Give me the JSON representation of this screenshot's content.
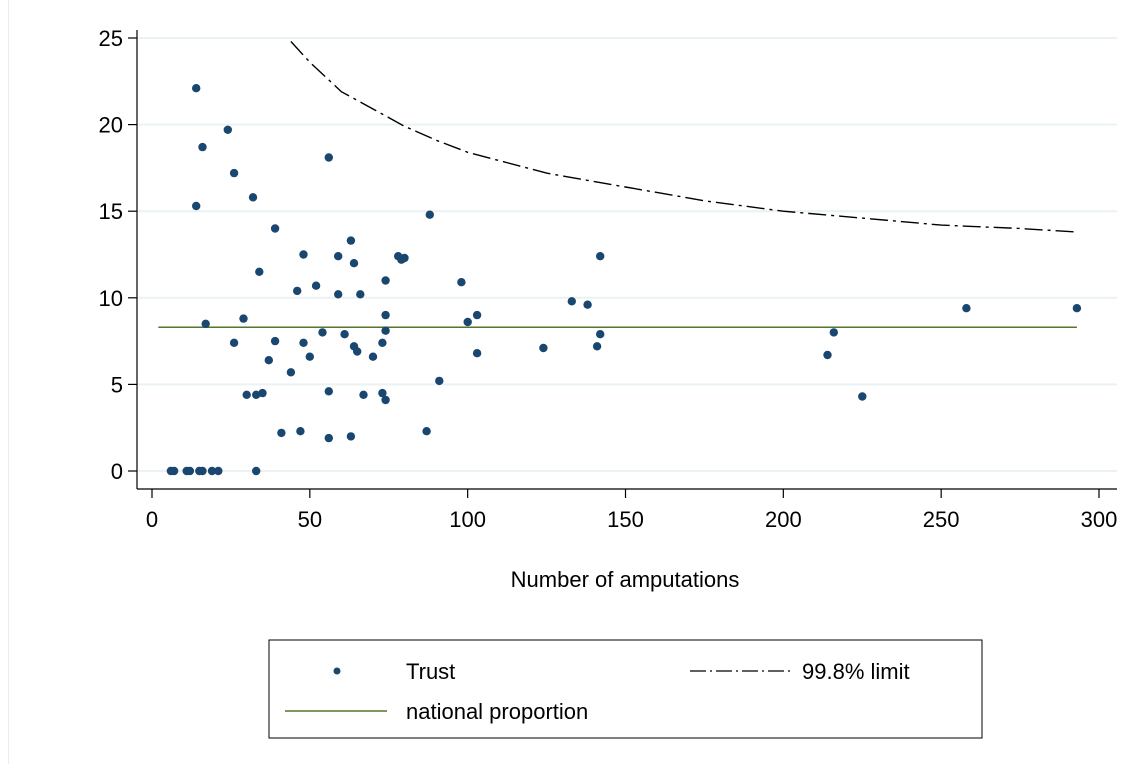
{
  "chart_data": {
    "type": "scatter",
    "xlabel": "Number of amputations",
    "ylabel": "",
    "xlim": [
      0,
      300
    ],
    "ylim": [
      0,
      25
    ],
    "x_ticks": [
      0,
      50,
      100,
      150,
      200,
      250,
      300
    ],
    "y_ticks": [
      0,
      5,
      10,
      15,
      20,
      25
    ],
    "grid": "horizontal",
    "legend_position": "bottom",
    "colors": {
      "trust": "#1a476f",
      "national": "#55752f",
      "limit": "#000000",
      "grid": "#eaf2f3"
    },
    "legend": {
      "trust": "Trust",
      "limit": "99.8% limit",
      "national": "national proportion"
    },
    "national_proportion": 8.3,
    "national_x_range": [
      2,
      293
    ],
    "limit_curve": [
      {
        "x": 44,
        "y": 24.8
      },
      {
        "x": 50,
        "y": 23.6
      },
      {
        "x": 60,
        "y": 21.9
      },
      {
        "x": 70,
        "y": 20.9
      },
      {
        "x": 80,
        "y": 19.9
      },
      {
        "x": 90,
        "y": 19.1
      },
      {
        "x": 100,
        "y": 18.4
      },
      {
        "x": 125,
        "y": 17.2
      },
      {
        "x": 150,
        "y": 16.4
      },
      {
        "x": 175,
        "y": 15.6
      },
      {
        "x": 200,
        "y": 15.0
      },
      {
        "x": 225,
        "y": 14.6
      },
      {
        "x": 250,
        "y": 14.2
      },
      {
        "x": 275,
        "y": 14.0
      },
      {
        "x": 293,
        "y": 13.8
      }
    ],
    "series": [
      {
        "name": "Trust",
        "points": [
          {
            "x": 6,
            "y": 0
          },
          {
            "x": 7,
            "y": 0
          },
          {
            "x": 11,
            "y": 0
          },
          {
            "x": 12,
            "y": 0
          },
          {
            "x": 15,
            "y": 0
          },
          {
            "x": 16,
            "y": 0
          },
          {
            "x": 19,
            "y": 0
          },
          {
            "x": 21,
            "y": 0
          },
          {
            "x": 33,
            "y": 0
          },
          {
            "x": 14,
            "y": 22.1
          },
          {
            "x": 14,
            "y": 15.3
          },
          {
            "x": 16,
            "y": 18.7
          },
          {
            "x": 17,
            "y": 8.5
          },
          {
            "x": 24,
            "y": 19.7
          },
          {
            "x": 26,
            "y": 17.2
          },
          {
            "x": 26,
            "y": 7.4
          },
          {
            "x": 29,
            "y": 8.8
          },
          {
            "x": 30,
            "y": 4.4
          },
          {
            "x": 32,
            "y": 15.8
          },
          {
            "x": 33,
            "y": 4.4
          },
          {
            "x": 34,
            "y": 11.5
          },
          {
            "x": 35,
            "y": 4.5
          },
          {
            "x": 37,
            "y": 6.4
          },
          {
            "x": 39,
            "y": 14.0
          },
          {
            "x": 39,
            "y": 7.5
          },
          {
            "x": 41,
            "y": 2.2
          },
          {
            "x": 44,
            "y": 5.7
          },
          {
            "x": 46,
            "y": 10.4
          },
          {
            "x": 47,
            "y": 2.3
          },
          {
            "x": 48,
            "y": 12.5
          },
          {
            "x": 48,
            "y": 7.4
          },
          {
            "x": 50,
            "y": 6.6
          },
          {
            "x": 52,
            "y": 10.7
          },
          {
            "x": 54,
            "y": 8.0
          },
          {
            "x": 56,
            "y": 18.1
          },
          {
            "x": 56,
            "y": 4.6
          },
          {
            "x": 56,
            "y": 1.9
          },
          {
            "x": 59,
            "y": 12.4
          },
          {
            "x": 59,
            "y": 10.2
          },
          {
            "x": 61,
            "y": 7.9
          },
          {
            "x": 63,
            "y": 13.3
          },
          {
            "x": 63,
            "y": 2.0
          },
          {
            "x": 64,
            "y": 12.0
          },
          {
            "x": 64,
            "y": 7.2
          },
          {
            "x": 65,
            "y": 6.9
          },
          {
            "x": 66,
            "y": 10.2
          },
          {
            "x": 67,
            "y": 4.4
          },
          {
            "x": 70,
            "y": 6.6
          },
          {
            "x": 73,
            "y": 7.4
          },
          {
            "x": 73,
            "y": 4.5
          },
          {
            "x": 74,
            "y": 11.0
          },
          {
            "x": 74,
            "y": 9.0
          },
          {
            "x": 74,
            "y": 8.1
          },
          {
            "x": 74,
            "y": 4.1
          },
          {
            "x": 78,
            "y": 12.4
          },
          {
            "x": 79,
            "y": 12.2
          },
          {
            "x": 80,
            "y": 12.3
          },
          {
            "x": 87,
            "y": 2.3
          },
          {
            "x": 88,
            "y": 14.8
          },
          {
            "x": 91,
            "y": 5.2
          },
          {
            "x": 98,
            "y": 10.9
          },
          {
            "x": 100,
            "y": 8.6
          },
          {
            "x": 103,
            "y": 9.0
          },
          {
            "x": 103,
            "y": 6.8
          },
          {
            "x": 124,
            "y": 7.1
          },
          {
            "x": 133,
            "y": 9.8
          },
          {
            "x": 138,
            "y": 9.6
          },
          {
            "x": 141,
            "y": 7.2
          },
          {
            "x": 142,
            "y": 12.4
          },
          {
            "x": 142,
            "y": 7.9
          },
          {
            "x": 214,
            "y": 6.7
          },
          {
            "x": 216,
            "y": 8.0
          },
          {
            "x": 225,
            "y": 4.3
          },
          {
            "x": 258,
            "y": 9.4
          },
          {
            "x": 293,
            "y": 9.4
          }
        ]
      }
    ]
  }
}
